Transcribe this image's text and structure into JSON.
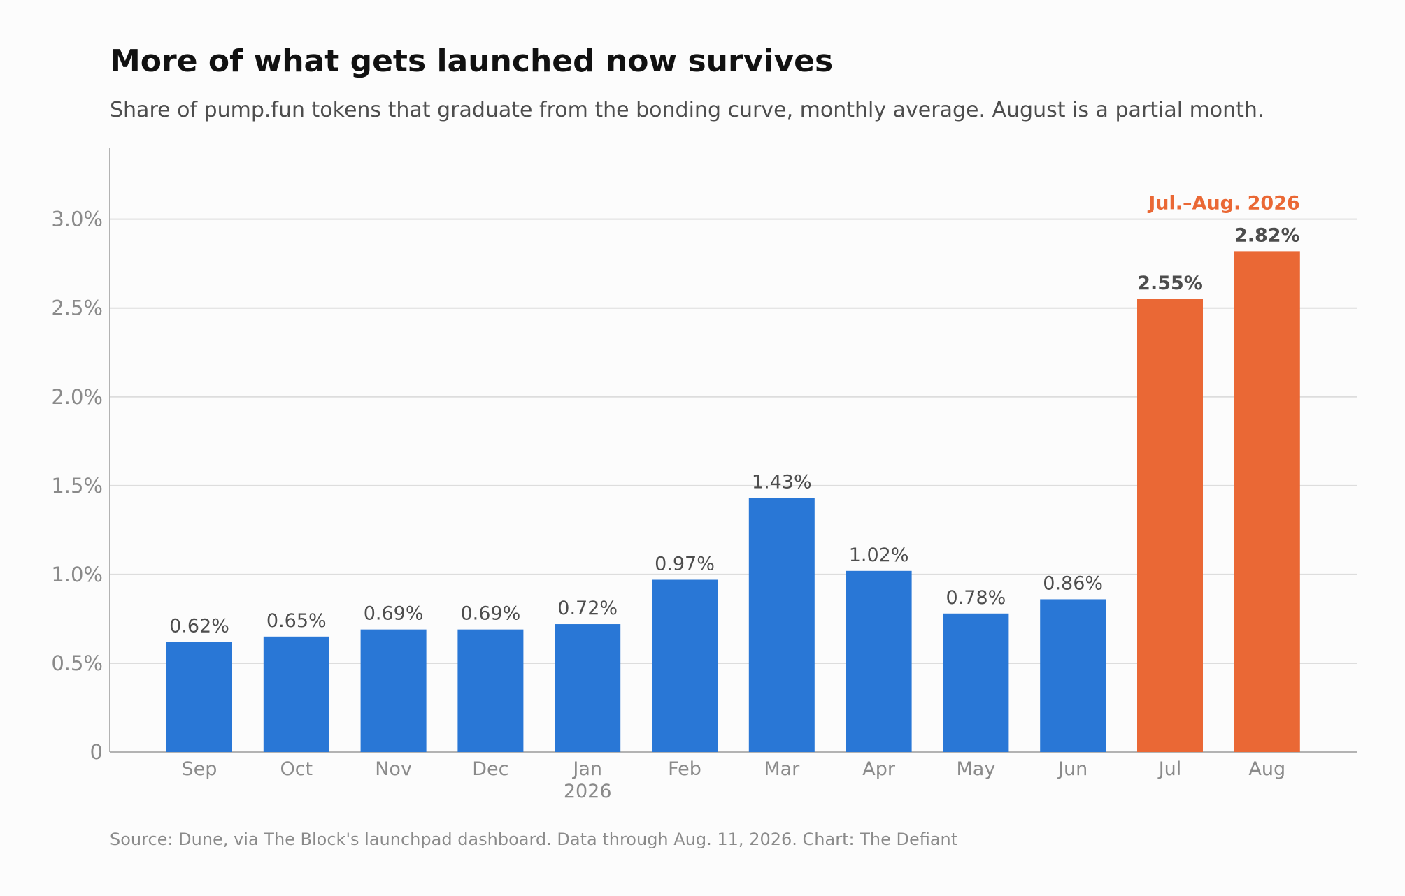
{
  "colors": {
    "primary": "#2977d6",
    "highlight": "#ea6835",
    "gridline": "#dddddd",
    "axis": "#b3b3b3",
    "background": "#fcfcfc"
  },
  "chart_data": {
    "type": "bar",
    "title": "More of what gets launched now survives",
    "subtitle": "Share of pump.fun tokens that graduate from the bonding curve, monthly average. August is a partial month.",
    "source": "Source: Dune, via The Block's launchpad dashboard. Data through Aug. 11, 2026. Chart: The Defiant",
    "xlabel": "",
    "ylabel": "",
    "ylim": [
      0,
      3.4
    ],
    "grid": true,
    "yticks": [
      0,
      0.5,
      1.0,
      1.5,
      2.0,
      2.5,
      3.0
    ],
    "ytick_labels": [
      "0",
      "0.5%",
      "1.0%",
      "1.5%",
      "2.0%",
      "2.5%",
      "3.0%"
    ],
    "categories": [
      "Sep",
      "Oct",
      "Nov",
      "Dec",
      "Jan",
      "Feb",
      "Mar",
      "Apr",
      "May",
      "Jun",
      "Jul",
      "Aug"
    ],
    "category_sublabels": [
      "",
      "",
      "",
      "",
      "2026",
      "",
      "",
      "",
      "",
      "",
      "",
      ""
    ],
    "values": [
      0.62,
      0.65,
      0.69,
      0.69,
      0.72,
      0.97,
      1.43,
      1.02,
      0.78,
      0.86,
      2.55,
      2.82
    ],
    "value_labels": [
      "0.62%",
      "0.65%",
      "0.69%",
      "0.69%",
      "0.72%",
      "0.97%",
      "1.43%",
      "1.02%",
      "0.78%",
      "0.86%",
      "2.55%",
      "2.82%"
    ],
    "highlighted": [
      false,
      false,
      false,
      false,
      false,
      false,
      false,
      false,
      false,
      false,
      true,
      true
    ],
    "annotation": {
      "text": "Jul.–Aug. 2026",
      "category": "Aug"
    }
  }
}
